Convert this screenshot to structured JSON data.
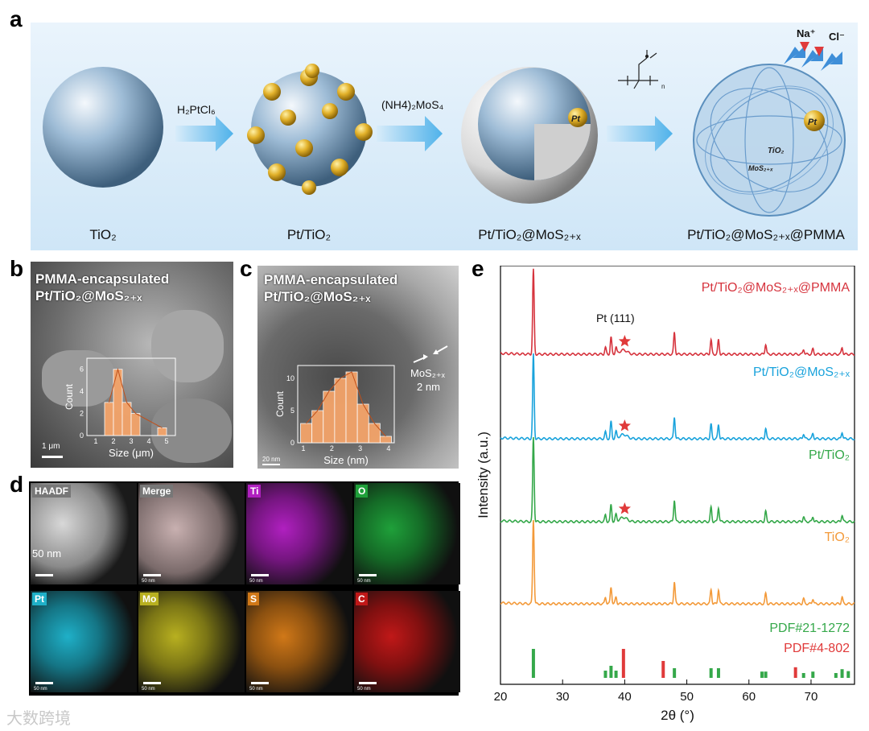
{
  "panel_labels": {
    "a": "a",
    "b": "b",
    "c": "c",
    "d": "d",
    "e": "e"
  },
  "schematic": {
    "stages": [
      {
        "label": "TiO₂"
      },
      {
        "label": "Pt/TiO₂"
      },
      {
        "label": "Pt/TiO₂@MoS₂₊ₓ"
      },
      {
        "label": "Pt/TiO₂@MoS₂₊ₓ@PMMA"
      }
    ],
    "reagents": [
      "H₂PtCl₆",
      "(NH4)₂MoS₄"
    ],
    "pt_label": "Pt",
    "tio2_label": "TiO₂",
    "mos2_label": "MoS₂₊ₓ",
    "ions": [
      "Na⁺",
      "Cl⁻"
    ],
    "polymer_subscript": "n",
    "colors": {
      "sphere": "#8fb2cf",
      "pt": "#d4a21c",
      "arrow": "#5bb8ec",
      "bg": "#d8ecfa"
    }
  },
  "sem": {
    "caption_line1": "PMMA-encapsulated",
    "caption_line2": "Pt/TiO₂@MoS₂₊ₓ",
    "scale_bar": "1 μm",
    "hist": {
      "xlabel": "Size (μm)",
      "ylabel": "Count",
      "xticks": [
        "1",
        "2",
        "3",
        "4",
        "5"
      ],
      "yticks": [
        "0",
        "2",
        "4",
        "6"
      ],
      "bins": [
        {
          "x": 1.75,
          "v": 3
        },
        {
          "x": 2.25,
          "v": 6
        },
        {
          "x": 2.75,
          "v": 3
        },
        {
          "x": 3.25,
          "v": 2
        },
        {
          "x": 4.75,
          "v": 0.7
        }
      ]
    }
  },
  "tem": {
    "caption_line1": "PMMA-encapsulated",
    "caption_line2": "Pt/TiO₂@MoS₂₊ₓ",
    "layer_label": "MoS₂₊ₓ",
    "thickness": "2 nm",
    "scale_bar": "20 nm",
    "hist": {
      "xlabel": "Size (nm)",
      "ylabel": "Count",
      "xticks": [
        "1",
        "2",
        "3",
        "4"
      ],
      "yticks": [
        "0",
        "5",
        "10"
      ],
      "bins": [
        {
          "x": 1.1,
          "v": 3
        },
        {
          "x": 1.5,
          "v": 5
        },
        {
          "x": 1.9,
          "v": 8
        },
        {
          "x": 2.3,
          "v": 10
        },
        {
          "x": 2.7,
          "v": 11
        },
        {
          "x": 3.1,
          "v": 6
        },
        {
          "x": 3.5,
          "v": 3
        },
        {
          "x": 3.9,
          "v": 1
        }
      ]
    }
  },
  "maps": {
    "tiles": [
      {
        "label": "HAADF",
        "color": "#9a9a9a"
      },
      {
        "label": "Merge",
        "color": "#8c7a7a"
      },
      {
        "label": "Ti",
        "color": "#b020c0"
      },
      {
        "label": "O",
        "color": "#1fa03a"
      },
      {
        "label": "Pt",
        "color": "#1fb0c8"
      },
      {
        "label": "Mo",
        "color": "#b8b020"
      },
      {
        "label": "S",
        "color": "#d07818"
      },
      {
        "label": "C",
        "color": "#c01818"
      }
    ],
    "big_scale": "50 nm",
    "small_scale": "50 nm"
  },
  "chart_data": {
    "type": "line",
    "xlabel": "2θ (°)",
    "ylabel": "Intensity (a.u.)",
    "xlim": [
      20,
      77
    ],
    "xticks": [
      20,
      30,
      40,
      50,
      60,
      70
    ],
    "series": [
      {
        "name": "Pt/TiO₂@MoS₂₊ₓ@PMMA",
        "color": "#d6343e",
        "offset": 3,
        "star_at": 40
      },
      {
        "name": "Pt/TiO₂@MoS₂₊ₓ",
        "color": "#1aa3dc",
        "offset": 2,
        "star_at": 40
      },
      {
        "name": "Pt/TiO₂",
        "color": "#35a84a",
        "offset": 1,
        "star_at": 40
      },
      {
        "name": "TiO₂",
        "color": "#f39a3a",
        "offset": 0
      }
    ],
    "peaks": [
      [
        25.3,
        1.0
      ],
      [
        36.9,
        0.08
      ],
      [
        37.8,
        0.2
      ],
      [
        38.6,
        0.08
      ],
      [
        48.0,
        0.26
      ],
      [
        53.9,
        0.17
      ],
      [
        55.1,
        0.17
      ],
      [
        62.7,
        0.12
      ],
      [
        68.8,
        0.06
      ],
      [
        70.3,
        0.06
      ],
      [
        75.0,
        0.08
      ]
    ],
    "annotation": "Pt (111)",
    "references": [
      {
        "name": "PDF#21-1272",
        "color": "#35a84a",
        "lines": [
          [
            25.3,
            0.6
          ],
          [
            36.9,
            0.15
          ],
          [
            37.8,
            0.25
          ],
          [
            38.6,
            0.15
          ],
          [
            48.0,
            0.2
          ],
          [
            53.9,
            0.2
          ],
          [
            55.1,
            0.2
          ],
          [
            62.1,
            0.13
          ],
          [
            62.7,
            0.13
          ],
          [
            68.8,
            0.1
          ],
          [
            70.3,
            0.13
          ],
          [
            74.0,
            0.1
          ],
          [
            75.0,
            0.18
          ],
          [
            76.0,
            0.14
          ]
        ]
      },
      {
        "name": "PDF#4-802",
        "color": "#e03a3a",
        "lines": [
          [
            39.8,
            0.6
          ],
          [
            46.2,
            0.35
          ],
          [
            67.5,
            0.22
          ]
        ]
      }
    ]
  },
  "watermark": "大数跨境"
}
